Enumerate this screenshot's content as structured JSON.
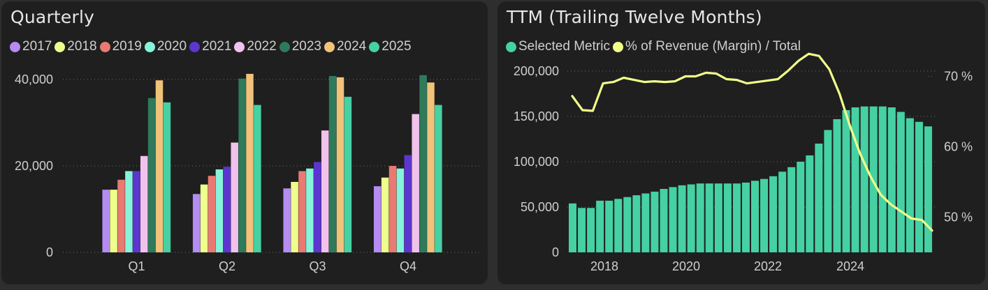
{
  "panels": {
    "left_title": "Quarterly",
    "right_title": "TTM (Trailing Twelve Months)"
  },
  "colors": {
    "background": "#1f1f1f",
    "grid": "#6b6b6b",
    "text": "#cfcfcf",
    "bar": "#45d1a3",
    "line": "#f2ff8a"
  },
  "chart_data": [
    {
      "type": "bar",
      "title": "Quarterly",
      "categories": [
        "Q1",
        "Q2",
        "Q3",
        "Q4"
      ],
      "series": [
        {
          "name": "2017",
          "color": "#b48cf2",
          "values": [
            14500,
            13500,
            14800,
            15300
          ]
        },
        {
          "name": "2018",
          "color": "#eeff8c",
          "values": [
            14500,
            15700,
            16300,
            17300
          ]
        },
        {
          "name": "2019",
          "color": "#e87a72",
          "values": [
            16800,
            17700,
            18800,
            20000
          ]
        },
        {
          "name": "2020",
          "color": "#86f3da",
          "values": [
            18800,
            19200,
            19400,
            19400
          ]
        },
        {
          "name": "2021",
          "color": "#5c36cf",
          "values": [
            18800,
            19800,
            20900,
            22500
          ]
        },
        {
          "name": "2022",
          "color": "#f1c2eb",
          "values": [
            22300,
            25400,
            28200,
            32000
          ]
        },
        {
          "name": "2023",
          "color": "#2e7a5a",
          "values": [
            35700,
            40200,
            40800,
            41000
          ]
        },
        {
          "name": "2024",
          "color": "#f0c27a",
          "values": [
            39800,
            41300,
            40500,
            39300
          ]
        },
        {
          "name": "2025",
          "color": "#45d1a3",
          "values": [
            34700,
            34100,
            36000,
            34100
          ]
        }
      ],
      "yticks": [
        "0",
        "20,000",
        "40,000"
      ],
      "ylim": [
        0,
        50000
      ],
      "grid": true,
      "legend": "top-left"
    },
    {
      "type": "bar",
      "title": "TTM (Trailing Twelve Months)",
      "legend": "top-left",
      "series": [
        {
          "name": "Selected Metric",
          "kind": "bar",
          "color": "#45d1a3",
          "values": [
            54000,
            49000,
            49000,
            57000,
            57000,
            59000,
            61000,
            63000,
            65000,
            67000,
            70000,
            72000,
            74000,
            75000,
            76000,
            76000,
            76000,
            76000,
            76000,
            77000,
            79000,
            81000,
            84000,
            89000,
            94000,
            100000,
            107000,
            120000,
            135000,
            147000,
            157000,
            160000,
            161000,
            161000,
            161000,
            160000,
            155000,
            148000,
            144000,
            139000
          ]
        },
        {
          "name": "% of Revenue (Margin) / Total",
          "kind": "line",
          "color": "#f2ff8a",
          "axis": "right",
          "values": [
            67.2,
            65.2,
            65.1,
            69,
            69.2,
            69.8,
            69.5,
            69.2,
            69.3,
            69.2,
            69.3,
            70,
            70,
            70.5,
            70.4,
            69.6,
            69.5,
            69,
            69.2,
            69.4,
            69.6,
            70.8,
            72.2,
            73.2,
            72.9,
            71,
            67.5,
            63,
            59,
            55.8,
            53.2,
            51.8,
            50.8,
            49.8,
            49.6,
            48.1
          ]
        },
        {
          "name": "",
          "kind": "x-axis",
          "values": []
        }
      ],
      "x_ticks": [
        "2018",
        "2020",
        "2022",
        "2024"
      ],
      "x_range": [
        "2017-03",
        "2026-12"
      ],
      "y_left_ticks": [
        "0",
        "50,000",
        "100,000",
        "150,000",
        "200,000"
      ],
      "y_left_range": [
        0,
        200000
      ],
      "y_right_ticks": [
        "50 %",
        "60 %",
        "70 %"
      ],
      "y_right_range": [
        45,
        75
      ],
      "grid": true
    }
  ]
}
